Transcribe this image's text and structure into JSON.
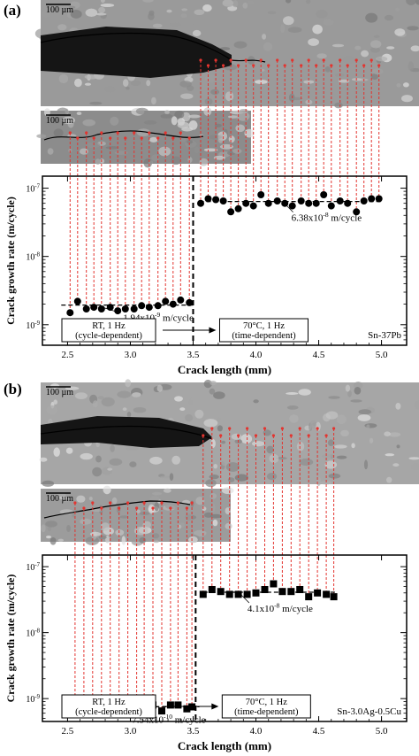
{
  "panels": [
    {
      "label": "(a)",
      "micrograph_large": {
        "scale_bar": "100 µm",
        "bg": "#9a9a9a"
      },
      "micrograph_small": {
        "scale_bar": "100 µm",
        "bg": "#8c8c8c"
      },
      "chart_data": {
        "type": "scatter",
        "title": "",
        "xlabel": "Crack length (mm)",
        "ylabel": "Crack growth rate (m/cycle)",
        "xlim": [
          2.3,
          5.2
        ],
        "ylim": [
          5e-10,
          1.5e-07
        ],
        "yscale": "log",
        "xticks": [
          "2.5",
          "3.0",
          "3.5",
          "4.0",
          "4.5",
          "5.0"
        ],
        "yticks": [
          {
            "base": "10",
            "exp": "-9",
            "value": 1e-09
          },
          {
            "base": "10",
            "exp": "-8",
            "value": 1e-08
          },
          {
            "base": "10",
            "exp": "-7",
            "value": 1e-07
          }
        ],
        "marker": "circle",
        "series": [
          {
            "name": "",
            "x": [
              2.52,
              2.58,
              2.65,
              2.71,
              2.77,
              2.84,
              2.9,
              2.96,
              3.03,
              3.09,
              3.15,
              3.22,
              3.28,
              3.34,
              3.4,
              3.47,
              3.56,
              3.62,
              3.68,
              3.74,
              3.8,
              3.86,
              3.92,
              3.98,
              4.04,
              4.1,
              4.17,
              4.23,
              4.29,
              4.36,
              4.42,
              4.48,
              4.54,
              4.6,
              4.67,
              4.73,
              4.8,
              4.86,
              4.92,
              4.98
            ],
            "y": [
              1.5e-09,
              2.2e-09,
              1.7e-09,
              1.8e-09,
              1.7e-09,
              1.8e-09,
              1.6e-09,
              1.7e-09,
              1.7e-09,
              1.9e-09,
              1.8e-09,
              1.9e-09,
              2.2e-09,
              2e-09,
              2.3e-09,
              2.1e-09,
              6e-08,
              7e-08,
              6.8e-08,
              6.5e-08,
              4.5e-08,
              5e-08,
              6e-08,
              5.5e-08,
              8e-08,
              6e-08,
              6.5e-08,
              6e-08,
              5.5e-08,
              6.5e-08,
              6e-08,
              6e-08,
              8e-08,
              5.5e-08,
              6.5e-08,
              6e-08,
              4.5e-08,
              6.5e-08,
              7e-08,
              7e-08
            ]
          }
        ],
        "fits": [
          {
            "x": [
              2.45,
              3.5
            ],
            "y": 1.94e-09
          },
          {
            "x": [
              3.55,
              5.0
            ],
            "y": 6.38e-08
          }
        ],
        "transition_x": 3.5,
        "annotations": {
          "fit1": {
            "mantissa": "1.94x10",
            "exp": "-9",
            "unit": " m/cycle"
          },
          "fit2": {
            "mantissa": "6.38x10",
            "exp": "-8",
            "unit": " m/cycle"
          },
          "regime1": [
            "RT, 1 Hz",
            "(cycle-dependent)"
          ],
          "regime2": [
            "70°C, 1 Hz",
            "(time-dependent)"
          ],
          "material": "Sn-37Pb"
        }
      }
    },
    {
      "label": "(b)",
      "micrograph_large": {
        "scale_bar": "100 µm",
        "bg": "#a6a6a6"
      },
      "micrograph_small": {
        "scale_bar": "100 µm",
        "bg": "#9c9c9c"
      },
      "chart_data": {
        "type": "scatter",
        "title": "",
        "xlabel": "Crack length (mm)",
        "ylabel": "Crack growth rate (m/cycle)",
        "xlim": [
          2.3,
          5.2
        ],
        "ylim": [
          4.5e-10,
          1.5e-07
        ],
        "yscale": "log",
        "xticks": [
          "2.5",
          "3.0",
          "3.5",
          "4.0",
          "4.5",
          "5.0"
        ],
        "yticks": [
          {
            "base": "10",
            "exp": "-9",
            "value": 1e-09
          },
          {
            "base": "10",
            "exp": "-8",
            "value": 1e-08
          },
          {
            "base": "10",
            "exp": "-7",
            "value": 1e-07
          }
        ],
        "marker": "square",
        "series": [
          {
            "name": "",
            "x": [
              2.56,
              2.63,
              2.7,
              2.77,
              2.84,
              2.91,
              2.98,
              3.05,
              3.11,
              3.18,
              3.25,
              3.32,
              3.38,
              3.45,
              3.49,
              3.58,
              3.65,
              3.72,
              3.79,
              3.86,
              3.93,
              4.0,
              4.07,
              4.14,
              4.21,
              4.28,
              4.35,
              4.42,
              4.49,
              4.56,
              4.62
            ],
            "y": [
              7.5e-10,
              9e-10,
              8e-10,
              8e-10,
              6e-10,
              8e-10,
              8e-10,
              7.5e-10,
              9e-10,
              8e-10,
              6.5e-10,
              8e-10,
              8e-10,
              7e-10,
              7.5e-10,
              3.8e-08,
              4.5e-08,
              4.2e-08,
              3.8e-08,
              3.8e-08,
              3.8e-08,
              4e-08,
              4.5e-08,
              5.5e-08,
              4.2e-08,
              4.2e-08,
              4.5e-08,
              3.5e-08,
              4e-08,
              3.8e-08,
              3.5e-08
            ]
          }
        ],
        "fits": [
          {
            "x": [
              2.52,
              3.55
            ],
            "y": 7.54e-10
          },
          {
            "x": [
              3.58,
              4.65
            ],
            "y": 4.1e-08
          }
        ],
        "transition_x": 3.52,
        "annotations": {
          "fit1": {
            "mantissa": "7.54x10",
            "exp": "-10",
            "unit": " m/cycle"
          },
          "fit2": {
            "mantissa": "4.1x10",
            "exp": "-8",
            "unit": " m/cycle"
          },
          "regime1": [
            "RT, 1 Hz",
            "(cycle-dependent)"
          ],
          "regime2": [
            "70°C, 1 Hz",
            "(time-dependent)"
          ],
          "material": "Sn-3.0Ag-0.5Cu"
        }
      }
    }
  ],
  "colors": {
    "guide": "#e3342f",
    "marker": "#000000",
    "crack": "#151515"
  }
}
